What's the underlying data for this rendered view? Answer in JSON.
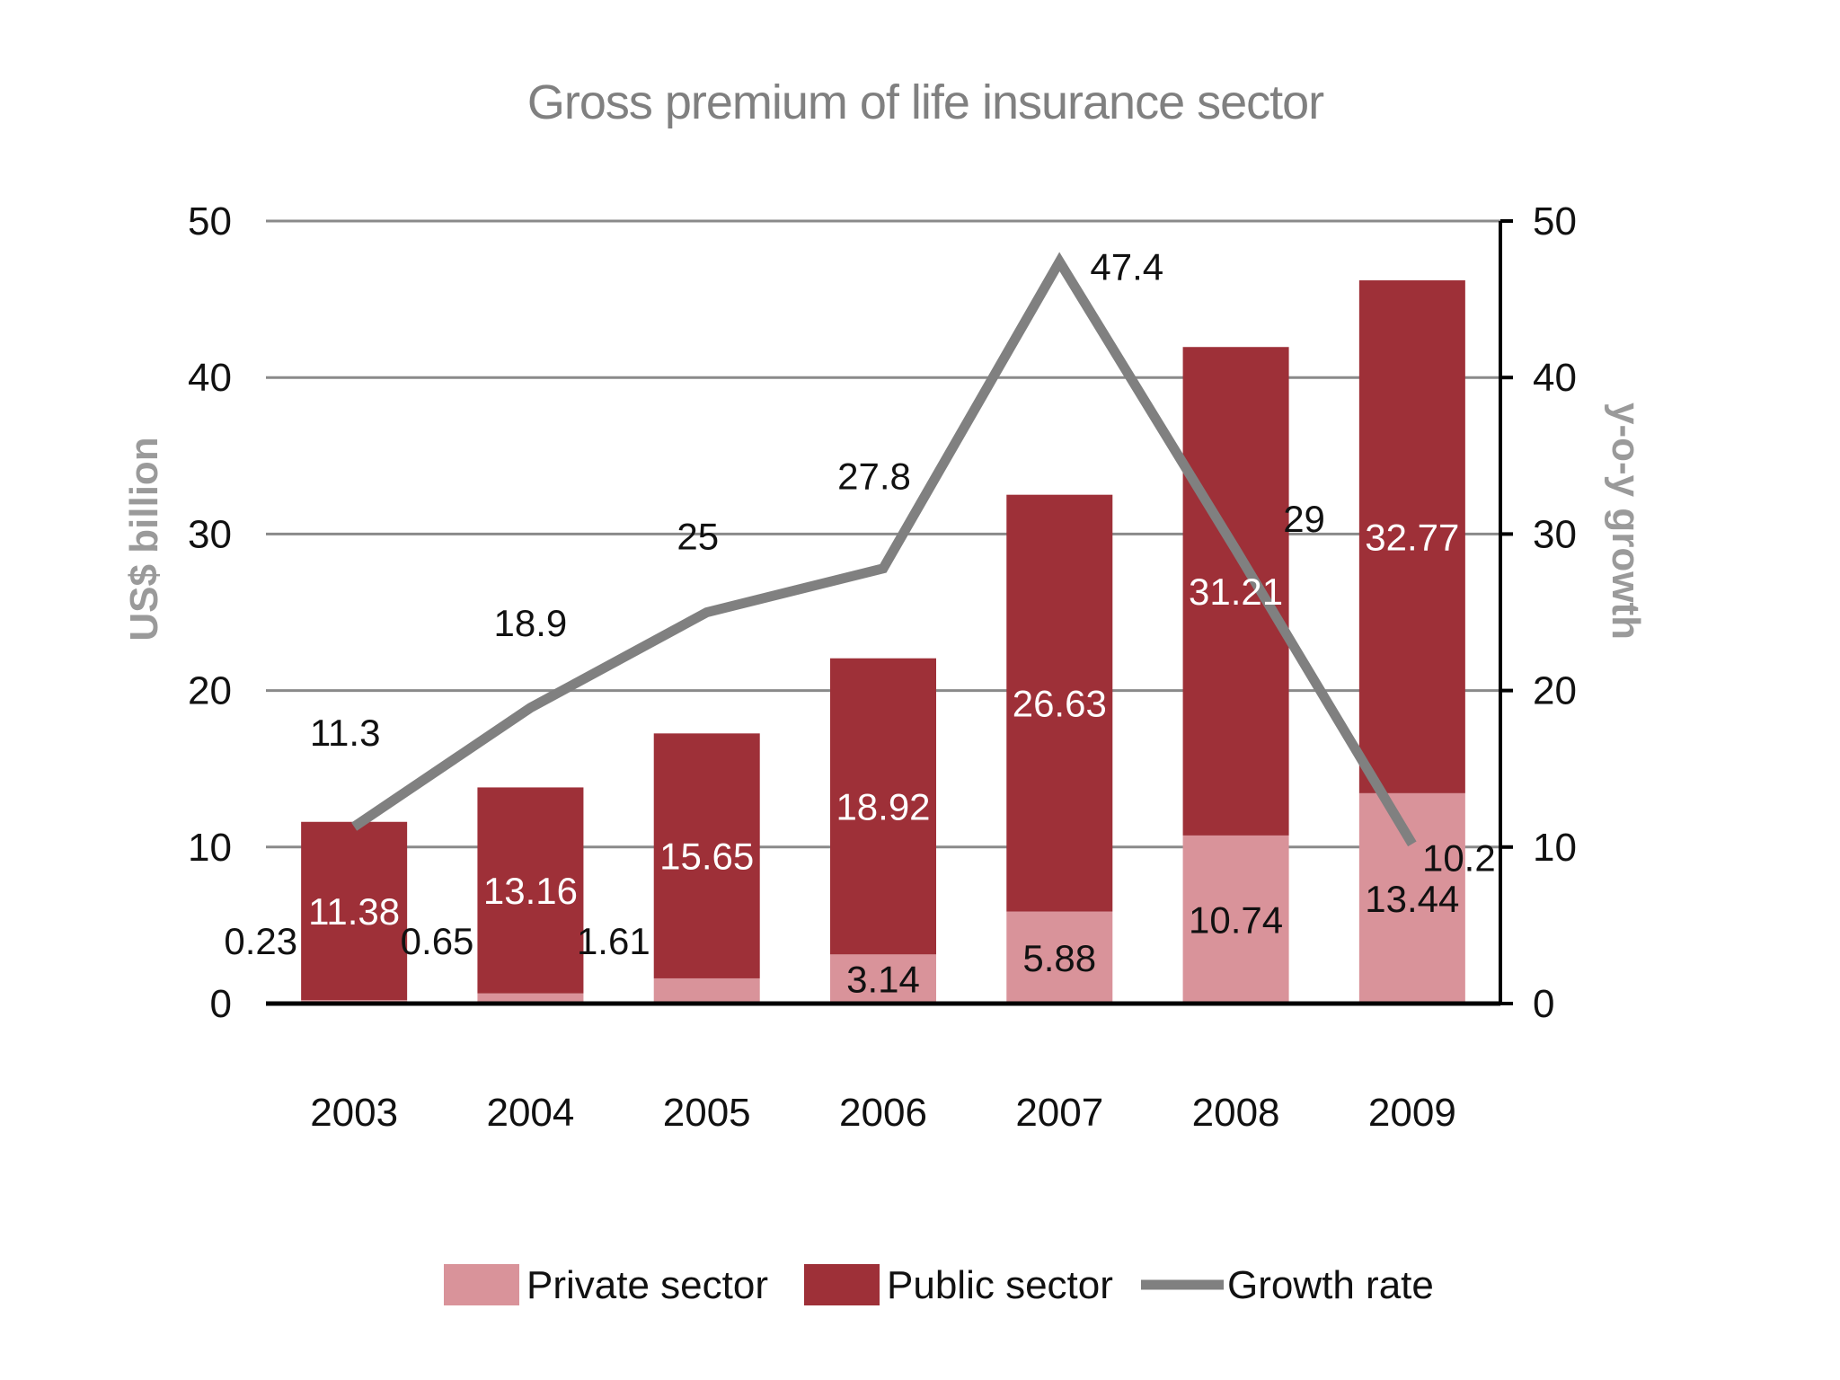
{
  "chart_data": {
    "type": "bar",
    "stacked": true,
    "title": "Gross premium of life insurance sector",
    "categories": [
      "2003",
      "2004",
      "2005",
      "2006",
      "2007",
      "2008",
      "2009"
    ],
    "series": [
      {
        "name": "Private sector",
        "kind": "bar",
        "axis": "left",
        "color": "#d9939a",
        "values": [
          0.23,
          0.65,
          1.61,
          3.14,
          5.88,
          10.74,
          13.44
        ]
      },
      {
        "name": "Public sector",
        "kind": "bar",
        "axis": "left",
        "color": "#9e3038",
        "values": [
          11.38,
          13.16,
          15.65,
          18.92,
          26.63,
          31.21,
          32.77
        ]
      },
      {
        "name": "Growth rate",
        "kind": "line",
        "axis": "right",
        "color": "#808080",
        "values": [
          11.3,
          18.9,
          25,
          27.8,
          47.4,
          29,
          10.2
        ]
      }
    ],
    "ylabel": "US$ billion",
    "y2label": "y-o-y growth",
    "ylim": [
      0,
      50
    ],
    "y2lim": [
      0,
      50
    ],
    "yticks": [
      "0",
      "10",
      "20",
      "30",
      "40",
      "50"
    ],
    "y2ticks": [
      "0",
      "10",
      "20",
      "30",
      "40",
      "50"
    ],
    "grid": true,
    "legend": "bottom"
  }
}
